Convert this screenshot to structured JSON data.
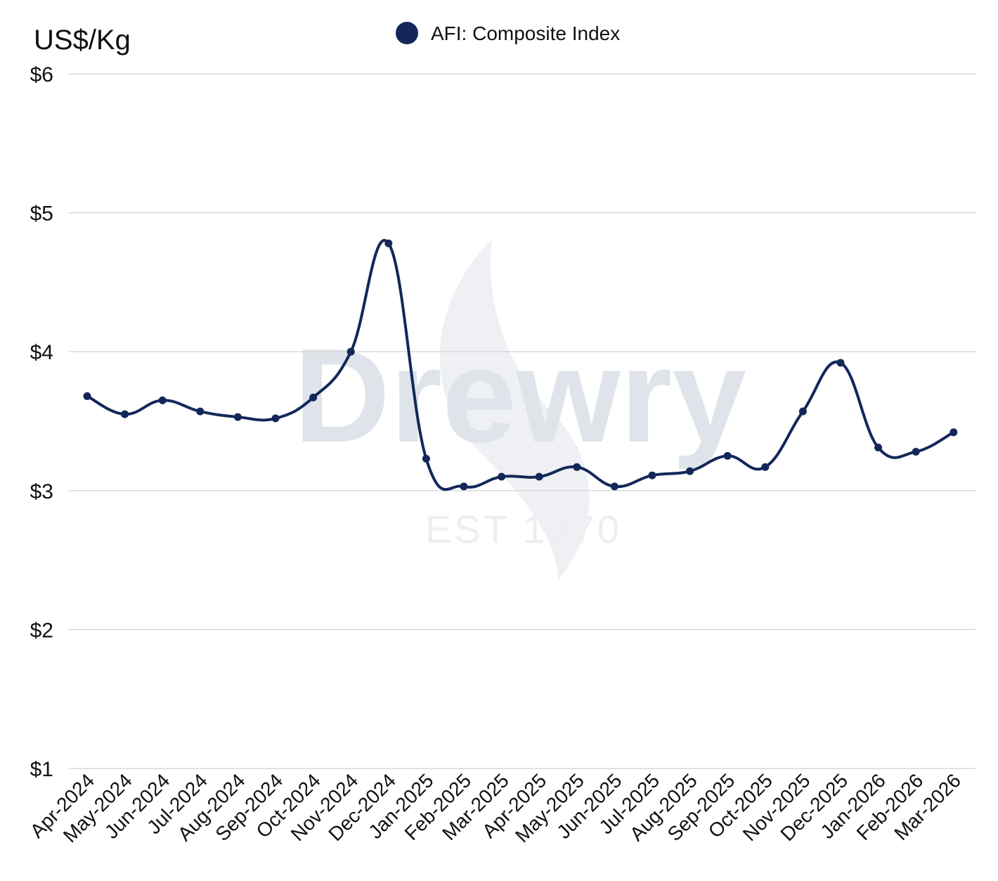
{
  "chart_data": {
    "type": "line",
    "unit_label": "US$/Kg",
    "legend": {
      "position": "top-center",
      "entries": [
        "AFI: Composite Index"
      ]
    },
    "watermark": {
      "brand": "Drewry",
      "subtitle": "EST 1970"
    },
    "ylim": [
      1,
      6
    ],
    "yticks": [
      1,
      2,
      3,
      4,
      5,
      6
    ],
    "ytick_labels": [
      "$1",
      "$2",
      "$3",
      "$4",
      "$5",
      "$6"
    ],
    "grid": true,
    "categories": [
      "Apr-2024",
      "May-2024",
      "Jun-2024",
      "Jul-2024",
      "Aug-2024",
      "Sep-2024",
      "Oct-2024",
      "Nov-2024",
      "Dec-2024",
      "Jan-2025",
      "Feb-2025",
      "Mar-2025",
      "Apr-2025",
      "May-2025",
      "Jun-2025",
      "Jul-2025",
      "Aug-2025",
      "Sep-2025",
      "Oct-2025",
      "Nov-2025",
      "Dec-2025",
      "Jan-2026",
      "Feb-2026",
      "Mar-2026"
    ],
    "series": [
      {
        "name": "AFI: Composite Index",
        "color": "#13275a",
        "values": [
          3.68,
          3.55,
          3.65,
          3.57,
          3.53,
          3.52,
          3.67,
          4.0,
          4.78,
          3.23,
          3.03,
          3.1,
          3.1,
          3.17,
          3.03,
          3.11,
          3.14,
          3.25,
          3.17,
          3.57,
          3.92,
          3.31,
          3.28,
          3.42
        ]
      }
    ]
  }
}
